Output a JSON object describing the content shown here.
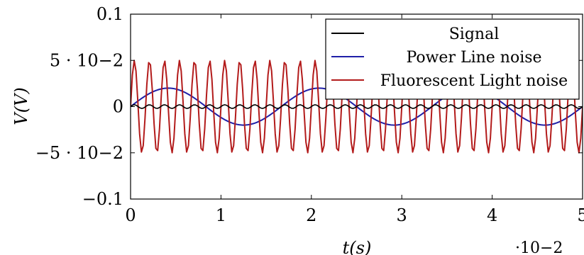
{
  "chart_data": {
    "type": "line",
    "title": "",
    "xlabel": "t(s)",
    "ylabel": "V(V)",
    "xlim": [
      0,
      0.05
    ],
    "ylim": [
      -0.1,
      0.1
    ],
    "x_ticks": [
      0,
      0.01,
      0.02,
      0.03,
      0.04,
      0.05
    ],
    "x_tick_labels": [
      "0",
      "1",
      "2",
      "3",
      "4",
      "5"
    ],
    "x_scale_label": "·10−2",
    "y_ticks": [
      -0.1,
      -0.05,
      0,
      0.05,
      0.1
    ],
    "y_tick_labels": [
      "−0.1",
      "−5 · 10−2",
      "0",
      "5 · 10−2",
      "0.1"
    ],
    "grid": false,
    "legend_position": "top-right",
    "series": [
      {
        "name": "Signal",
        "color": "#000000",
        "amplitude": 0.002,
        "frequency_hz": 600,
        "x_sample_step": 0.0002
      },
      {
        "name": "Power Line noise",
        "color": "#1f1fa8",
        "amplitude": 0.02,
        "frequency_hz": 60,
        "x_sample_step": 0.0002
      },
      {
        "name": "Fluorescent Light noise",
        "color": "#b31b1b",
        "amplitude": 0.05,
        "frequency_hz": 600,
        "x_sample_step": 0.0002
      }
    ]
  }
}
